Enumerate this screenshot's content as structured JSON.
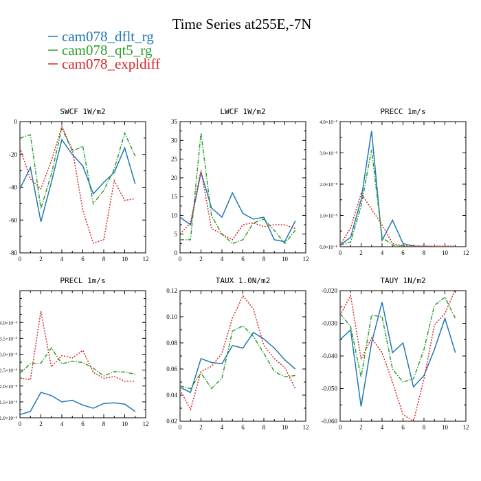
{
  "figure": {
    "title": "Time Series at255E,-7N",
    "legend": [
      {
        "label": "cam078_dflt_rg",
        "color": "#1f77b4",
        "dash": "solid"
      },
      {
        "label": "cam078_qt5_rg",
        "color": "#2ca02c",
        "dash": "dashdot"
      },
      {
        "label": "cam078_expldiff",
        "color": "#d62728",
        "dash": "dot"
      }
    ]
  },
  "chart_data": [
    {
      "type": "line",
      "title": "SWCF  1W/m2",
      "xlim": [
        0,
        12
      ],
      "xticks": [
        0,
        2,
        4,
        6,
        8,
        10,
        12
      ],
      "ylim": [
        -80,
        0
      ],
      "yticks": [
        -80,
        -60,
        -40,
        -20,
        0
      ],
      "ytick_labels": [
        "-80",
        "-60",
        "-40",
        "-20",
        "0"
      ],
      "x": [
        0,
        1,
        2,
        3,
        4,
        5,
        6,
        7,
        8,
        9,
        10,
        11
      ],
      "series": [
        {
          "name": "cam078_dflt_rg",
          "values": [
            -41,
            -28,
            -61,
            -37,
            -11,
            -20,
            -27,
            -44,
            -37,
            -31,
            -16,
            -38
          ]
        },
        {
          "name": "cam078_qt5_rg",
          "values": [
            -10,
            -8,
            -53,
            -32,
            -4,
            -18,
            -15,
            -50,
            -42,
            -29,
            -7,
            -21
          ]
        },
        {
          "name": "cam078_expldiff",
          "values": [
            -16,
            -35,
            -41,
            -24,
            -3,
            -17,
            -54,
            -74,
            -72,
            -36,
            -48,
            -47
          ]
        }
      ]
    },
    {
      "type": "line",
      "title": "LWCF  1W/m2",
      "xlim": [
        0,
        12
      ],
      "xticks": [
        0,
        2,
        4,
        6,
        8,
        10,
        12
      ],
      "ylim": [
        0,
        35
      ],
      "yticks": [
        0,
        5,
        10,
        15,
        20,
        25,
        30,
        35
      ],
      "ytick_labels": [
        "0",
        "5",
        "10",
        "15",
        "20",
        "25",
        "30",
        "35"
      ],
      "x": [
        0,
        1,
        2,
        3,
        4,
        5,
        6,
        7,
        8,
        9,
        10,
        11
      ],
      "series": [
        {
          "name": "cam078_dflt_rg",
          "values": [
            9.5,
            7.5,
            21.5,
            12,
            9.5,
            16,
            10.5,
            9,
            9.5,
            3.5,
            3,
            8.5
          ]
        },
        {
          "name": "cam078_qt5_rg",
          "values": [
            3.5,
            3.5,
            32,
            10,
            5,
            2.5,
            3.5,
            8,
            9,
            6,
            2.5,
            6
          ]
        },
        {
          "name": "cam078_expldiff",
          "values": [
            5,
            8,
            22,
            6.5,
            5,
            3.5,
            7.5,
            8,
            7,
            7.5,
            7.5,
            6.5
          ]
        }
      ]
    },
    {
      "type": "line",
      "title": "PRECC  1m/s",
      "xlim": [
        0,
        12
      ],
      "xticks": [
        0,
        2,
        4,
        6,
        8,
        10,
        12
      ],
      "ylim": [
        0,
        4e-08
      ],
      "yticks": [
        0,
        1e-08,
        2e-08,
        3e-08,
        4e-08
      ],
      "ytick_labels": [
        "0.0×10⁻⁸",
        "1.0×10⁻⁸",
        "2.0×10⁻⁸",
        "3.0×10⁻⁸",
        "4.0×10⁻⁸"
      ],
      "x": [
        0,
        1,
        2,
        3,
        4,
        5,
        6,
        7,
        8,
        9,
        10,
        11
      ],
      "series": [
        {
          "name": "cam078_dflt_rg",
          "values": [
            5e-10,
            3e-09,
            1.5e-08,
            3.7e-08,
            2e-09,
            8.5e-09,
            1e-09,
            2e-10,
            1e-10,
            0,
            0,
            0
          ]
        },
        {
          "name": "cam078_qt5_rg",
          "values": [
            5e-10,
            1.5e-09,
            1.3e-08,
            3.1e-08,
            3e-09,
            5e-10,
            1e-10,
            0,
            0,
            0,
            0,
            0
          ]
        },
        {
          "name": "cam078_expldiff",
          "values": [
            5e-10,
            6e-09,
            1.7e-08,
            1.2e-08,
            7e-09,
            1e-09,
            3e-10,
            2e-10,
            2e-10,
            2e-10,
            2e-10,
            2e-10
          ]
        }
      ]
    },
    {
      "type": "line",
      "title": "PRECL  1m/s",
      "xlim": [
        0,
        12
      ],
      "xticks": [
        0,
        2,
        4,
        6,
        8,
        10,
        12
      ],
      "ylim": [
        1e-08,
        5e-08
      ],
      "yticks": [
        1e-08,
        1.5e-08,
        2e-08,
        2.5e-08,
        3e-08,
        3.5e-08,
        4e-08
      ],
      "ytick_labels": [
        "1.0×10⁻⁸",
        "1.5×10⁻⁸",
        "2.0×10⁻⁸",
        "2.5×10⁻⁸",
        "3.0×10⁻⁸",
        "3.5×10⁻⁸",
        "4.0×10⁻⁸"
      ],
      "x": [
        0,
        1,
        2,
        3,
        4,
        5,
        6,
        7,
        8,
        9,
        10,
        11
      ],
      "series": [
        {
          "name": "cam078_dflt_rg",
          "values": [
            1.1e-08,
            1.2e-08,
            1.8e-08,
            1.7e-08,
            1.5e-08,
            1.55e-08,
            1.4e-08,
            1.3e-08,
            1.45e-08,
            1.47e-08,
            1.43e-08,
            1.2e-08
          ]
        },
        {
          "name": "cam078_qt5_rg",
          "values": [
            2.4e-08,
            2.7e-08,
            2.72e-08,
            3.2e-08,
            2.7e-08,
            2.78e-08,
            2.74e-08,
            2.56e-08,
            2.32e-08,
            2.45e-08,
            2.44e-08,
            2.37e-08
          ]
        },
        {
          "name": "cam078_expldiff",
          "values": [
            2.25e-08,
            2.2e-08,
            4.35e-08,
            2.6e-08,
            2.96e-08,
            2.88e-08,
            3.12e-08,
            2.43e-08,
            2.24e-08,
            2.3e-08,
            2.15e-08,
            2.15e-08
          ]
        }
      ]
    },
    {
      "type": "line",
      "title": "TAUX  1.0N/m2",
      "xlim": [
        0,
        12
      ],
      "xticks": [
        0,
        2,
        4,
        6,
        8,
        10,
        12
      ],
      "ylim": [
        0.02,
        0.12
      ],
      "yticks": [
        0.02,
        0.04,
        0.06,
        0.08,
        0.1,
        0.12
      ],
      "ytick_labels": [
        "0.02",
        "0.04",
        "0.06",
        "0.08",
        "0.10",
        "0.12"
      ],
      "x": [
        0,
        1,
        2,
        3,
        4,
        5,
        6,
        7,
        8,
        9,
        10,
        11
      ],
      "series": [
        {
          "name": "cam078_dflt_rg",
          "values": [
            0.046,
            0.042,
            0.068,
            0.065,
            0.064,
            0.078,
            0.076,
            0.088,
            0.083,
            0.076,
            0.067,
            0.06
          ]
        },
        {
          "name": "cam078_qt5_rg",
          "values": [
            0.047,
            0.045,
            0.057,
            0.045,
            0.053,
            0.089,
            0.093,
            0.085,
            0.072,
            0.058,
            0.054,
            0.055
          ]
        },
        {
          "name": "cam078_expldiff",
          "values": [
            0.044,
            0.029,
            0.058,
            0.062,
            0.072,
            0.099,
            0.116,
            0.106,
            0.078,
            0.068,
            0.061,
            0.045
          ]
        }
      ]
    },
    {
      "type": "line",
      "title": "TAUY  1N/m2",
      "xlim": [
        0,
        12
      ],
      "xticks": [
        0,
        2,
        4,
        6,
        8,
        10,
        12
      ],
      "ylim": [
        -0.06,
        -0.02
      ],
      "yticks": [
        -0.06,
        -0.05,
        -0.04,
        -0.03,
        -0.02
      ],
      "ytick_labels": [
        "-0.060",
        "-0.050",
        "-0.040",
        "-0.030",
        "-0.020"
      ],
      "x": [
        0,
        1,
        2,
        3,
        4,
        5,
        6,
        7,
        8,
        9,
        10,
        11
      ],
      "series": [
        {
          "name": "cam078_dflt_rg",
          "values": [
            -0.035,
            -0.032,
            -0.0555,
            -0.036,
            -0.0235,
            -0.039,
            -0.036,
            -0.0495,
            -0.046,
            -0.038,
            -0.0285,
            -0.039
          ]
        },
        {
          "name": "cam078_qt5_rg",
          "values": [
            -0.027,
            -0.031,
            -0.0465,
            -0.0275,
            -0.028,
            -0.044,
            -0.048,
            -0.047,
            -0.038,
            -0.0245,
            -0.022,
            -0.0285
          ]
        },
        {
          "name": "cam078_expldiff",
          "values": [
            -0.0275,
            -0.0215,
            -0.041,
            -0.0345,
            -0.039,
            -0.048,
            -0.058,
            -0.06,
            -0.047,
            -0.0305,
            -0.027,
            -0.0195
          ]
        }
      ]
    }
  ]
}
